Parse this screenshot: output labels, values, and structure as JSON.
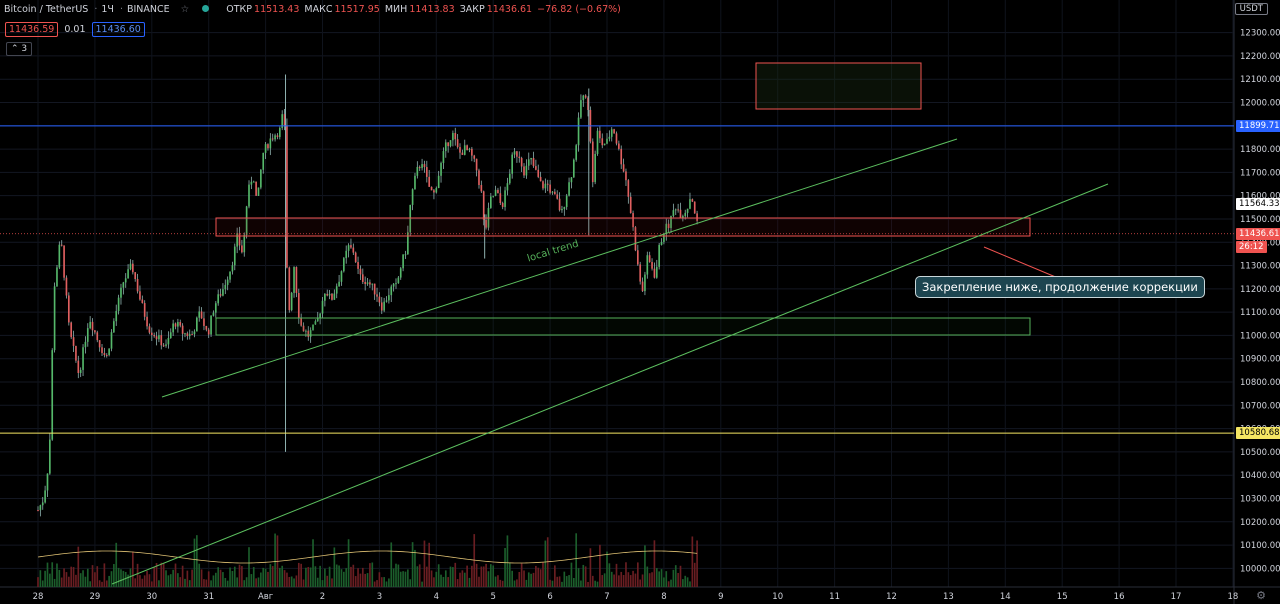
{
  "header": {
    "symbol": "Bitcoin / TetherUS",
    "interval": "1Ч",
    "exchange": "BINANCE",
    "ohlc": [
      {
        "label": "ОТКР",
        "value": "11513.43"
      },
      {
        "label": "МАКС",
        "value": "11517.95"
      },
      {
        "label": "МИН",
        "value": "11413.83"
      },
      {
        "label": "ЗАКР",
        "value": "11436.61"
      }
    ],
    "change": "−76.82 (−0.67%)",
    "bid": "11436.59",
    "spread": "0.01",
    "ask": "11436.60",
    "indicators_count": "3",
    "currency": "USDT"
  },
  "annotations": {
    "trend_label": "local trend",
    "callout": "Закрепление ниже, продолжение коррекции"
  },
  "price_tags": [
    {
      "value": "11899.71",
      "color": "#2962ff",
      "text_color": "#ffffff"
    },
    {
      "value": "11564.33",
      "color": "#ffffff",
      "text_color": "#000000"
    },
    {
      "value": "11436.61",
      "color": "#ef5350",
      "text_color": "#ffffff"
    },
    {
      "value": "26:12",
      "color": "#ef5350",
      "text_color": "#ffffff"
    },
    {
      "value": "10580.68",
      "color": "#f5e663",
      "text_color": "#000000"
    }
  ],
  "chart_data": {
    "type": "candlestick",
    "ylim": [
      9920,
      12440
    ],
    "y_ticks": [
      "12300.00",
      "12200.00",
      "12100.00",
      "12000.00",
      "11900.00",
      "11800.00",
      "11700.00",
      "11600.00",
      "11500.00",
      "11400.00",
      "11300.00",
      "11200.00",
      "11100.00",
      "11000.00",
      "10900.00",
      "10800.00",
      "10700.00",
      "10600.00",
      "10500.00",
      "10400.00",
      "10300.00",
      "10200.00",
      "10100.00",
      "10000.00"
    ],
    "x_ticks": [
      "28",
      "29",
      "30",
      "31",
      "Авг",
      "2",
      "3",
      "4",
      "5",
      "6",
      "7",
      "8",
      "9",
      "10",
      "11",
      "12",
      "13",
      "14",
      "15",
      "16",
      "17",
      "18"
    ],
    "close_path": [
      [
        0,
        10250
      ],
      [
        0.1,
        10300
      ],
      [
        0.2,
        10480
      ],
      [
        0.28,
        11200
      ],
      [
        0.4,
        11420
      ],
      [
        0.55,
        11020
      ],
      [
        0.72,
        10830
      ],
      [
        0.9,
        11080
      ],
      [
        1.05,
        10980
      ],
      [
        1.2,
        10900
      ],
      [
        1.35,
        11080
      ],
      [
        1.5,
        11230
      ],
      [
        1.65,
        11300
      ],
      [
        1.8,
        11150
      ],
      [
        1.95,
        11030
      ],
      [
        2.1,
        10990
      ],
      [
        2.25,
        10950
      ],
      [
        2.4,
        11060
      ],
      [
        2.55,
        11010
      ],
      [
        2.7,
        11000
      ],
      [
        2.85,
        11100
      ],
      [
        2.98,
        11000
      ],
      [
        3.1,
        11130
      ],
      [
        3.25,
        11200
      ],
      [
        3.4,
        11300
      ],
      [
        3.5,
        11420
      ],
      [
        3.6,
        11350
      ],
      [
        3.68,
        11600
      ],
      [
        3.78,
        11700
      ],
      [
        3.85,
        11560
      ],
      [
        3.95,
        11780
      ],
      [
        4.1,
        11850
      ],
      [
        4.25,
        11880
      ],
      [
        4.33,
        11990
      ],
      [
        4.35,
        11380
      ],
      [
        4.42,
        11100
      ],
      [
        4.5,
        11300
      ],
      [
        4.6,
        11050
      ],
      [
        4.75,
        11000
      ],
      [
        4.9,
        11050
      ],
      [
        5.05,
        11200
      ],
      [
        5.15,
        11150
      ],
      [
        5.3,
        11250
      ],
      [
        5.45,
        11380
      ],
      [
        5.55,
        11360
      ],
      [
        5.65,
        11250
      ],
      [
        5.8,
        11230
      ],
      [
        5.95,
        11180
      ],
      [
        6.05,
        11120
      ],
      [
        6.2,
        11200
      ],
      [
        6.3,
        11210
      ],
      [
        6.38,
        11300
      ],
      [
        6.48,
        11380
      ],
      [
        6.55,
        11580
      ],
      [
        6.65,
        11700
      ],
      [
        6.75,
        11750
      ],
      [
        6.85,
        11650
      ],
      [
        6.95,
        11600
      ],
      [
        7.05,
        11700
      ],
      [
        7.15,
        11800
      ],
      [
        7.28,
        11870
      ],
      [
        7.4,
        11780
      ],
      [
        7.5,
        11800
      ],
      [
        7.6,
        11780
      ],
      [
        7.7,
        11720
      ],
      [
        7.8,
        11600
      ],
      [
        7.85,
        11430
      ],
      [
        7.95,
        11580
      ],
      [
        8.05,
        11620
      ],
      [
        8.15,
        11550
      ],
      [
        8.25,
        11650
      ],
      [
        8.35,
        11780
      ],
      [
        8.45,
        11780
      ],
      [
        8.55,
        11700
      ],
      [
        8.65,
        11760
      ],
      [
        8.75,
        11700
      ],
      [
        8.85,
        11640
      ],
      [
        8.95,
        11650
      ],
      [
        9.05,
        11600
      ],
      [
        9.12,
        11580
      ],
      [
        9.2,
        11520
      ],
      [
        9.3,
        11620
      ],
      [
        9.4,
        11720
      ],
      [
        9.48,
        11870
      ],
      [
        9.55,
        12030
      ],
      [
        9.6,
        12020
      ],
      [
        9.68,
        11980
      ],
      [
        9.75,
        11650
      ],
      [
        9.82,
        11880
      ],
      [
        9.9,
        11820
      ],
      [
        10.0,
        11830
      ],
      [
        10.1,
        11900
      ],
      [
        10.18,
        11820
      ],
      [
        10.25,
        11750
      ],
      [
        10.32,
        11690
      ],
      [
        10.4,
        11560
      ],
      [
        10.48,
        11420
      ],
      [
        10.55,
        11280
      ],
      [
        10.62,
        11180
      ],
      [
        10.7,
        11330
      ],
      [
        10.78,
        11300
      ],
      [
        10.85,
        11250
      ],
      [
        10.92,
        11380
      ],
      [
        11.0,
        11450
      ],
      [
        11.1,
        11480
      ],
      [
        11.2,
        11560
      ],
      [
        11.3,
        11520
      ],
      [
        11.4,
        11540
      ],
      [
        11.48,
        11610
      ],
      [
        11.55,
        11520
      ],
      [
        11.62,
        11436
      ]
    ],
    "volume_ma": "yellow line over volume bars"
  }
}
